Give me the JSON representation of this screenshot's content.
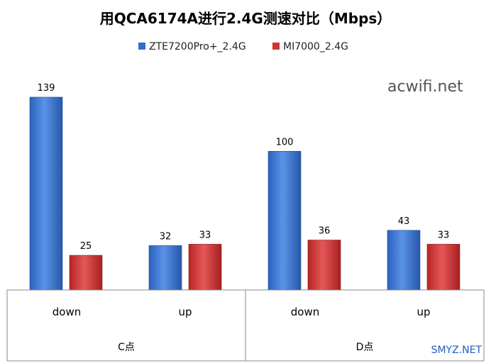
{
  "chart_data": {
    "type": "bar",
    "title": "用QCA6174A进行2.4G测速对比（Mbps）",
    "groups": [
      "C点",
      "D点"
    ],
    "categories": [
      "down",
      "up",
      "down",
      "up"
    ],
    "series": [
      {
        "name": "ZTE7200Pro+_2.4G",
        "color": "#2f6fd0",
        "values": [
          139,
          32,
          100,
          43
        ]
      },
      {
        "name": "MI7000_2.4G",
        "color": "#d23232",
        "values": [
          25,
          33,
          36,
          33
        ]
      }
    ],
    "ylim": [
      0,
      139
    ],
    "grid": false,
    "legend": "top"
  },
  "watermarks": {
    "top_right": "acwifi.net",
    "bottom_right": "SMYZ.NET"
  }
}
